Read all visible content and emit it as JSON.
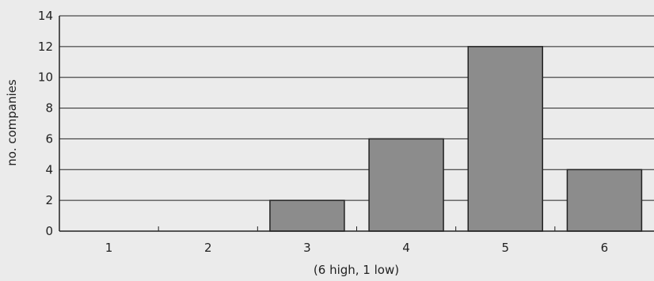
{
  "chart_data": {
    "type": "bar",
    "categories": [
      "1",
      "2",
      "3",
      "4",
      "5",
      "6"
    ],
    "values": [
      0,
      0,
      2,
      6,
      12,
      4
    ],
    "title": "",
    "xlabel": "(6 high, 1 low)",
    "ylabel": "no. companies",
    "ylim": [
      0,
      14
    ],
    "yticks": [
      0,
      2,
      4,
      6,
      8,
      10,
      12,
      14
    ],
    "grid": true,
    "legend": "none",
    "colors": {
      "bar_fill": "#8c8c8c",
      "bar_stroke": "#222222",
      "background": "#ebebeb",
      "grid": "#222222"
    }
  }
}
